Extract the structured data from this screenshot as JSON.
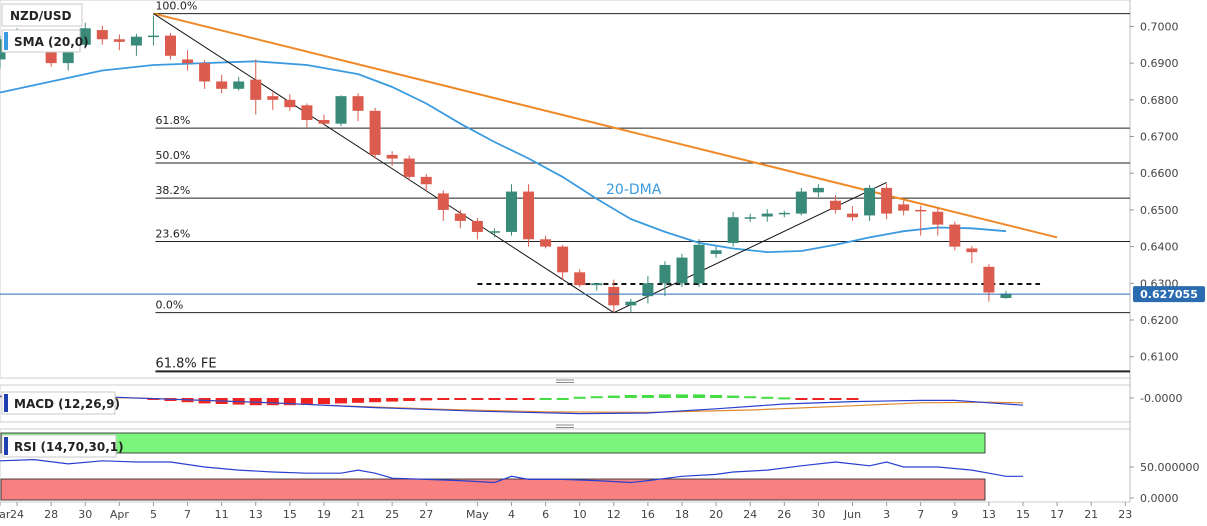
{
  "symbol": "NZD/USD",
  "indicator_labels": {
    "sma": "SMA (20,0)",
    "macd": "MACD (12,26,9)",
    "rsi": "RSI (14,70,30,1)"
  },
  "annotations": {
    "dma": "20-DMA"
  },
  "colors": {
    "bull": "#3a8a7a",
    "bear": "#db5b4e",
    "sma": "#3a9ae0",
    "trendline": "#f08a28",
    "price_badge": "#2b6cb0",
    "rsi_overbought": "#7cf57c",
    "rsi_oversold": "#f88080",
    "macd_pos": "#44dd44",
    "macd_neg": "#ee2222"
  },
  "chart_data": {
    "type": "candlestick",
    "price_axis": {
      "min": 0.6042,
      "max": 0.7072,
      "ticks": [
        "0.7000",
        "0.6900",
        "0.6800",
        "0.6700",
        "0.6600",
        "0.6500",
        "0.6400",
        "0.6300",
        "0.6200",
        "0.6100"
      ],
      "tick_values": [
        0.7,
        0.69,
        0.68,
        0.67,
        0.66,
        0.65,
        0.64,
        0.63,
        0.62,
        0.61
      ]
    },
    "last_price": "0.627055",
    "date_axis": [
      {
        "label": "Mar",
        "i": 0
      },
      {
        "label": "24",
        "i": 1
      },
      {
        "label": "28",
        "i": 3
      },
      {
        "label": "30",
        "i": 5
      },
      {
        "label": "Apr",
        "i": 7
      },
      {
        "label": "5",
        "i": 9
      },
      {
        "label": "7",
        "i": 11
      },
      {
        "label": "11",
        "i": 13
      },
      {
        "label": "13",
        "i": 15
      },
      {
        "label": "15",
        "i": 17
      },
      {
        "label": "19",
        "i": 19
      },
      {
        "label": "21",
        "i": 21
      },
      {
        "label": "25",
        "i": 23
      },
      {
        "label": "27",
        "i": 25
      },
      {
        "label": "May",
        "i": 28
      },
      {
        "label": "4",
        "i": 30
      },
      {
        "label": "6",
        "i": 32
      },
      {
        "label": "10",
        "i": 34
      },
      {
        "label": "12",
        "i": 36
      },
      {
        "label": "16",
        "i": 38
      },
      {
        "label": "18",
        "i": 40
      },
      {
        "label": "20",
        "i": 42
      },
      {
        "label": "24",
        "i": 44
      },
      {
        "label": "26",
        "i": 46
      },
      {
        "label": "30",
        "i": 48
      },
      {
        "label": "Jun",
        "i": 50
      },
      {
        "label": "3",
        "i": 52
      },
      {
        "label": "7",
        "i": 54
      },
      {
        "label": "9",
        "i": 56
      },
      {
        "label": "13",
        "i": 58
      },
      {
        "label": "15",
        "i": 60
      },
      {
        "label": "17",
        "i": 62
      },
      {
        "label": "21",
        "i": 64
      },
      {
        "label": "23",
        "i": 66
      }
    ],
    "candles": [
      [
        0.691,
        0.6975,
        0.6885,
        0.6965
      ],
      [
        0.6968,
        0.6995,
        0.6955,
        0.6985
      ],
      [
        0.6975,
        0.699,
        0.6945,
        0.6955
      ],
      [
        0.6955,
        0.6968,
        0.689,
        0.69
      ],
      [
        0.69,
        0.696,
        0.688,
        0.6952
      ],
      [
        0.695,
        0.701,
        0.694,
        0.6995
      ],
      [
        0.699,
        0.7002,
        0.695,
        0.6965
      ],
      [
        0.6965,
        0.6978,
        0.6935,
        0.6958
      ],
      [
        0.6948,
        0.698,
        0.692,
        0.6972
      ],
      [
        0.6972,
        0.703,
        0.6948,
        0.6975
      ],
      [
        0.6975,
        0.6982,
        0.691,
        0.692
      ],
      [
        0.691,
        0.6935,
        0.688,
        0.69
      ],
      [
        0.69,
        0.6908,
        0.683,
        0.685
      ],
      [
        0.685,
        0.6868,
        0.6818,
        0.683
      ],
      [
        0.683,
        0.6862,
        0.6825,
        0.685
      ],
      [
        0.6855,
        0.691,
        0.676,
        0.68
      ],
      [
        0.681,
        0.682,
        0.6772,
        0.68
      ],
      [
        0.68,
        0.6815,
        0.677,
        0.678
      ],
      [
        0.6785,
        0.679,
        0.6725,
        0.6745
      ],
      [
        0.6745,
        0.676,
        0.673,
        0.6735
      ],
      [
        0.6735,
        0.6812,
        0.6728,
        0.681
      ],
      [
        0.681,
        0.6818,
        0.6742,
        0.677
      ],
      [
        0.677,
        0.6778,
        0.664,
        0.665
      ],
      [
        0.665,
        0.666,
        0.662,
        0.664
      ],
      [
        0.664,
        0.6648,
        0.658,
        0.659
      ],
      [
        0.659,
        0.6598,
        0.6552,
        0.657
      ],
      [
        0.6545,
        0.6553,
        0.647,
        0.65
      ],
      [
        0.649,
        0.65,
        0.645,
        0.647
      ],
      [
        0.647,
        0.6478,
        0.642,
        0.644
      ],
      [
        0.6438,
        0.645,
        0.6425,
        0.6442
      ],
      [
        0.644,
        0.657,
        0.643,
        0.655
      ],
      [
        0.655,
        0.657,
        0.64,
        0.642
      ],
      [
        0.642,
        0.643,
        0.6395,
        0.64
      ],
      [
        0.64,
        0.6405,
        0.631,
        0.633
      ],
      [
        0.633,
        0.6338,
        0.629,
        0.6295
      ],
      [
        0.6295,
        0.63,
        0.628,
        0.63
      ],
      [
        0.629,
        0.631,
        0.622,
        0.624
      ],
      [
        0.624,
        0.6258,
        0.622,
        0.625
      ],
      [
        0.6265,
        0.632,
        0.6245,
        0.63
      ],
      [
        0.63,
        0.636,
        0.6265,
        0.635
      ],
      [
        0.63,
        0.638,
        0.629,
        0.637
      ],
      [
        0.63,
        0.642,
        0.629,
        0.6405
      ],
      [
        0.638,
        0.64,
        0.637,
        0.639
      ],
      [
        0.641,
        0.6495,
        0.64,
        0.648
      ],
      [
        0.6478,
        0.649,
        0.6468,
        0.648
      ],
      [
        0.6482,
        0.6502,
        0.6468,
        0.649
      ],
      [
        0.6488,
        0.6498,
        0.648,
        0.6492
      ],
      [
        0.649,
        0.656,
        0.6485,
        0.655
      ],
      [
        0.6548,
        0.657,
        0.6535,
        0.656
      ],
      [
        0.6525,
        0.654,
        0.649,
        0.65
      ],
      [
        0.649,
        0.651,
        0.647,
        0.648
      ],
      [
        0.6485,
        0.6568,
        0.647,
        0.656
      ],
      [
        0.656,
        0.6572,
        0.6475,
        0.649
      ],
      [
        0.6515,
        0.6525,
        0.6485,
        0.6498
      ],
      [
        0.65,
        0.6512,
        0.643,
        0.6498
      ],
      [
        0.6495,
        0.6505,
        0.643,
        0.646
      ],
      [
        0.646,
        0.6468,
        0.639,
        0.64
      ],
      [
        0.6395,
        0.6402,
        0.6355,
        0.6385
      ],
      [
        0.6345,
        0.6352,
        0.625,
        0.6275
      ],
      [
        0.626,
        0.628,
        0.6258,
        0.6272
      ]
    ],
    "sma20": [
      [
        0,
        0.682
      ],
      [
        3,
        0.685
      ],
      [
        6,
        0.688
      ],
      [
        9,
        0.6895
      ],
      [
        12,
        0.69
      ],
      [
        15,
        0.6905
      ],
      [
        18,
        0.6895
      ],
      [
        21,
        0.687
      ],
      [
        23,
        0.6835
      ],
      [
        25,
        0.679
      ],
      [
        27,
        0.6735
      ],
      [
        29,
        0.6685
      ],
      [
        31,
        0.664
      ],
      [
        33,
        0.659
      ],
      [
        35,
        0.653
      ],
      [
        37,
        0.6475
      ],
      [
        39,
        0.644
      ],
      [
        41,
        0.641
      ],
      [
        43,
        0.6395
      ],
      [
        45,
        0.6385
      ],
      [
        47,
        0.6388
      ],
      [
        49,
        0.6405
      ],
      [
        51,
        0.6425
      ],
      [
        53,
        0.6442
      ],
      [
        55,
        0.6452
      ],
      [
        57,
        0.645
      ],
      [
        59,
        0.6442
      ]
    ],
    "fib_levels": [
      {
        "label": "100.0%",
        "value": 0.7035
      },
      {
        "label": "61.8%",
        "value": 0.6723
      },
      {
        "label": "50.0%",
        "value": 0.6628
      },
      {
        "label": "38.2%",
        "value": 0.6532
      },
      {
        "label": "23.6%",
        "value": 0.6414
      },
      {
        "label": "0.0%",
        "value": 0.622
      },
      {
        "label": "61.8% FE",
        "value": 0.606
      }
    ],
    "support_line": {
      "value": 0.6298,
      "from": 28,
      "to": 61
    },
    "trendline": {
      "points": [
        [
          9,
          0.7035
        ],
        [
          62,
          0.6425
        ]
      ]
    },
    "swing_lines": [
      [
        [
          9,
          0.7035
        ],
        [
          36,
          0.622
        ]
      ],
      [
        [
          36,
          0.622
        ],
        [
          52,
          0.6575
        ]
      ]
    ],
    "macd": {
      "ticks": [
        "-0.0000"
      ],
      "histogram": [
        -0.0003,
        -0.0005,
        -0.0007,
        -0.0009,
        -0.001,
        -0.0011,
        -0.0012,
        -0.0012,
        -0.0012,
        -0.0011,
        -0.001,
        -0.0009,
        -0.0008,
        -0.0007,
        -0.0006,
        -0.0005,
        -0.0004,
        -0.0003,
        -0.0002,
        -0.0002,
        -0.0001,
        -0.0001,
        -0.0001,
        0.0,
        0.0,
        0.0002,
        0.0003,
        0.0004,
        0.0005,
        0.0005,
        0.0006,
        0.0006,
        0.0006,
        0.0005,
        0.0004,
        0.0003,
        0.0002,
        0.0001,
        -0.0001,
        -0.0002,
        -0.0003,
        -0.0003
      ],
      "hist_start": 9,
      "macd_line": [
        [
          0,
          0.0003
        ],
        [
          6,
          0.0002
        ],
        [
          10,
          -0.0002
        ],
        [
          16,
          -0.0008
        ],
        [
          22,
          -0.0016
        ],
        [
          28,
          -0.0022
        ],
        [
          34,
          -0.0026
        ],
        [
          38,
          -0.0025
        ],
        [
          42,
          -0.0018
        ],
        [
          46,
          -0.001
        ],
        [
          50,
          -0.0006
        ],
        [
          54,
          -0.0004
        ],
        [
          56,
          -0.0004
        ],
        [
          58,
          -0.0008
        ],
        [
          60,
          -0.0012
        ]
      ],
      "signal_line": [
        [
          0,
          0.0002
        ],
        [
          8,
          0.0
        ],
        [
          14,
          -0.0006
        ],
        [
          20,
          -0.0013
        ],
        [
          26,
          -0.0019
        ],
        [
          32,
          -0.0023
        ],
        [
          38,
          -0.0024
        ],
        [
          44,
          -0.002
        ],
        [
          50,
          -0.0013
        ],
        [
          54,
          -0.0008
        ],
        [
          58,
          -0.0007
        ],
        [
          60,
          -0.0008
        ]
      ]
    },
    "rsi": {
      "ticks": [
        "50.000000",
        "0.0000"
      ],
      "tick_values": [
        50,
        0
      ],
      "overbought": 70,
      "oversold": 30,
      "values": [
        [
          0,
          60
        ],
        [
          2,
          62
        ],
        [
          4,
          55
        ],
        [
          6,
          60
        ],
        [
          8,
          58
        ],
        [
          10,
          58
        ],
        [
          12,
          50
        ],
        [
          14,
          45
        ],
        [
          16,
          42
        ],
        [
          18,
          40
        ],
        [
          20,
          40
        ],
        [
          21,
          45
        ],
        [
          22,
          40
        ],
        [
          23,
          32
        ],
        [
          25,
          30
        ],
        [
          27,
          28
        ],
        [
          29,
          25
        ],
        [
          30,
          35
        ],
        [
          31,
          30
        ],
        [
          33,
          30
        ],
        [
          35,
          28
        ],
        [
          37,
          25
        ],
        [
          38,
          28
        ],
        [
          40,
          35
        ],
        [
          42,
          38
        ],
        [
          43,
          42
        ],
        [
          45,
          45
        ],
        [
          47,
          52
        ],
        [
          49,
          58
        ],
        [
          50,
          55
        ],
        [
          51,
          52
        ],
        [
          52,
          58
        ],
        [
          53,
          50
        ],
        [
          55,
          50
        ],
        [
          57,
          45
        ],
        [
          58,
          40
        ],
        [
          59,
          35
        ],
        [
          60,
          35
        ]
      ]
    }
  }
}
